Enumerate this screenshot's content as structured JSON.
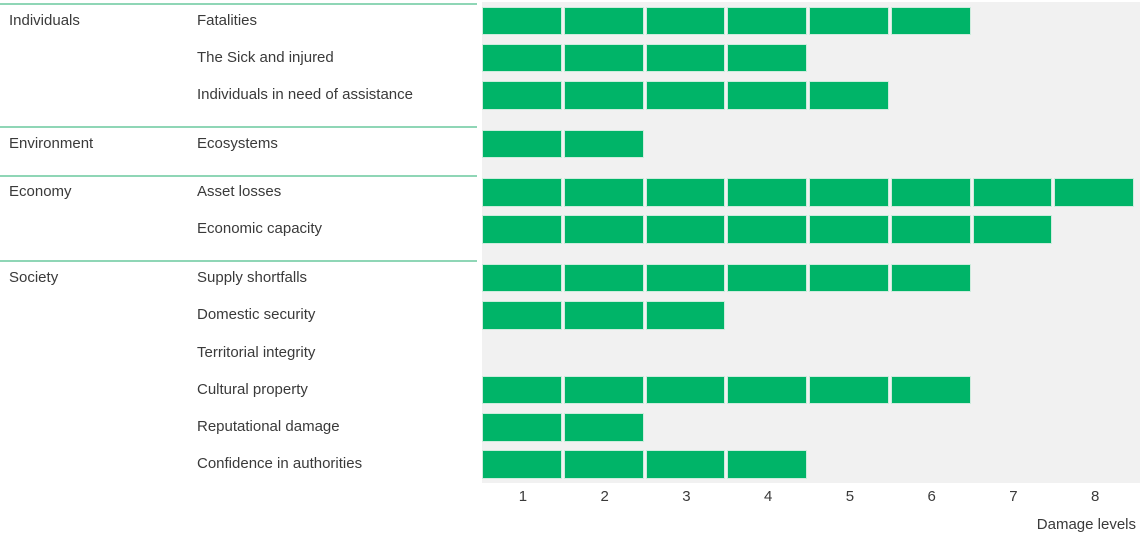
{
  "chart_data": {
    "type": "bar",
    "orientation": "horizontal",
    "style": "unit-segmented bars; one green segment per damage level, ticks centered under segments",
    "title": "",
    "xlabel": "Damage levels",
    "x_ticks": [
      "1",
      "2",
      "3",
      "4",
      "5",
      "6",
      "7",
      "8"
    ],
    "xlim": [
      0,
      8
    ],
    "grid": false,
    "legend": "none",
    "groups": [
      {
        "label": "Individuals",
        "rows": [
          {
            "label": "Fatalities",
            "level": 6
          },
          {
            "label": "The Sick and injured",
            "level": 4
          },
          {
            "label": "Individuals in need of assistance",
            "level": 5
          }
        ]
      },
      {
        "label": "Environment",
        "rows": [
          {
            "label": "Ecosystems",
            "level": 2
          }
        ]
      },
      {
        "label": "Economy",
        "rows": [
          {
            "label": "Asset losses",
            "level": 8
          },
          {
            "label": "Economic capacity",
            "level": 7
          }
        ]
      },
      {
        "label": "Society",
        "rows": [
          {
            "label": "Supply shortfalls",
            "level": 6
          },
          {
            "label": "Domestic security",
            "level": 3
          },
          {
            "label": "Territorial integrity",
            "level": 0
          },
          {
            "label": "Cultural property",
            "level": 6
          },
          {
            "label": "Reputational damage",
            "level": 2
          },
          {
            "label": "Confidence in authorities",
            "level": 4
          }
        ]
      }
    ],
    "colors": {
      "bar": "#00b468",
      "segment_border": "#cdecdd",
      "plot_background": "#f1f1f1",
      "separator_line": "#8fd6b6",
      "text": "#3a3a3a"
    }
  }
}
